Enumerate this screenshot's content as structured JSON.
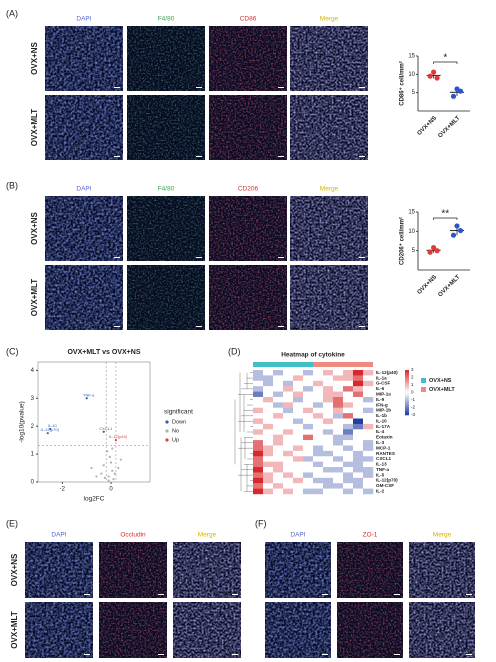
{
  "panel_a": {
    "label": "(A)",
    "columns": [
      "DAPI",
      "F4/80",
      "CD86",
      "Merge"
    ],
    "rows": [
      "OVX+NS",
      "OVX+MLT"
    ]
  },
  "panel_b": {
    "label": "(B)",
    "columns": [
      "DAPI",
      "F4/80",
      "CD206",
      "Merge"
    ],
    "rows": [
      "OVX+NS",
      "OVX+MLT"
    ]
  },
  "panel_c": {
    "label": "(C)"
  },
  "panel_d": {
    "label": "(D)"
  },
  "panel_e": {
    "label": "(E)",
    "columns": [
      "DAPI",
      "Occludin",
      "Merge"
    ],
    "rows": [
      "OVX+NS",
      "OVX+MLT"
    ]
  },
  "panel_f": {
    "label": "(F)",
    "columns": [
      "DAPI",
      "ZO-1",
      "Merge"
    ]
  },
  "chart_data": [
    {
      "type": "dot",
      "y_label": "CD86⁺ cell/mm²",
      "categories": [
        "OVX+NS",
        "OVX+MLT"
      ],
      "colors": [
        "#e03a3a",
        "#2c56c8"
      ],
      "values": [
        [
          9.5,
          10.6,
          9.0
        ],
        [
          4.0,
          6.0,
          5.4
        ]
      ],
      "mean": [
        9.7,
        5.1
      ],
      "sd": [
        0.8,
        1.0
      ],
      "ylim": [
        0,
        15
      ],
      "yticks": [
        5,
        10,
        15
      ],
      "annotation": "*"
    },
    {
      "type": "dot",
      "y_label": "CD206⁺ cell/mm²",
      "categories": [
        "OVX+NS",
        "OVX+MLT"
      ],
      "colors": [
        "#e03a3a",
        "#2c56c8"
      ],
      "values": [
        [
          4.6,
          5.8,
          5.0
        ],
        [
          9.0,
          11.4,
          10.2
        ]
      ],
      "mean": [
        5.1,
        10.2
      ],
      "sd": [
        0.6,
        1.2
      ],
      "ylim": [
        0,
        15
      ],
      "yticks": [
        5,
        10,
        15
      ],
      "annotation": "**"
    },
    {
      "type": "volcano",
      "title": "OVX+MLT vs OVX+NS",
      "x_label": "log2FC",
      "y_label": "-log10(pvalue)",
      "xlim": [
        -3,
        1.6
      ],
      "xticks": [
        -2,
        0
      ],
      "ylim": [
        0,
        4.3
      ],
      "yticks": [
        0,
        1,
        2,
        3,
        4
      ],
      "threshold_x": [
        -0.2,
        0.2
      ],
      "threshold_y": 1.3,
      "legend_title": "significant",
      "series": [
        {
          "name": "Down",
          "color": "#3a5cb0",
          "x": [
            -1.0,
            -2.5,
            -2.6,
            -0.3
          ],
          "values": [
            3.0,
            1.9,
            1.75,
            1.8
          ],
          "labels": [
            "TNF-a",
            "IL-10",
            "IL-12(p70)",
            "CXCL1"
          ]
        },
        {
          "name": "No",
          "color": "#b0b0b0",
          "x": [
            -0.1,
            0.05,
            -0.3,
            -0.05,
            0.1,
            -0.4,
            0.3,
            -0.15,
            0.0,
            -0.6,
            0.15,
            -0.25,
            0.4,
            -0.8,
            0.05,
            -0.1
          ],
          "values": [
            0.2,
            0.4,
            0.6,
            0.9,
            0.1,
            0.3,
            0.5,
            1.1,
            0.7,
            0.2,
            0.3,
            0.15,
            0.8,
            0.5,
            1.2,
            0.05
          ]
        },
        {
          "name": "Up",
          "color": "#e04040",
          "x": [
            0.2
          ],
          "values": [
            1.5
          ],
          "labels": [
            "IL-12(p40)"
          ]
        }
      ]
    },
    {
      "type": "heatmap",
      "title": "Heatmap of cytokine",
      "rows": [
        "IL-12(p40)",
        "IL-1a",
        "G-CSF",
        "IL-6",
        "MIP-1a",
        "IL-9",
        "IFN-g",
        "MIP-1b",
        "IL-1b",
        "IL-10",
        "IL-17A",
        "IL-4",
        "Eotaxin",
        "IL-3",
        "MCP-1",
        "RANTES",
        "CXCL1",
        "IL-13",
        "TNF-a",
        "IL-5",
        "IL-12(p70)",
        "GM-CSF",
        "IL-2"
      ],
      "groups": [
        {
          "name": "OVX+NS",
          "color": "#40bfc6",
          "count": 6
        },
        {
          "name": "OVX+MLT",
          "color": "#ef8a80",
          "count": 6
        }
      ],
      "zlim": [
        -3,
        3
      ],
      "zticks": [
        3,
        2,
        1,
        0,
        -1,
        -2,
        -3
      ],
      "values": [
        [
          -1,
          0,
          -1,
          0,
          0,
          -1,
          0,
          1,
          0,
          1,
          3,
          1
        ],
        [
          -1,
          -1,
          0,
          0,
          1,
          0,
          0,
          0,
          1,
          1,
          2,
          0
        ],
        [
          0,
          -1,
          0,
          -1,
          0,
          0,
          1,
          0,
          0,
          0,
          3,
          1
        ],
        [
          -1,
          0,
          0,
          1,
          0,
          -1,
          0,
          1,
          0,
          2,
          1,
          0
        ],
        [
          -2,
          0,
          -1,
          0,
          1,
          0,
          0,
          1,
          1,
          0,
          2,
          0
        ],
        [
          0,
          1,
          0,
          0,
          -1,
          0,
          0,
          1,
          2,
          0,
          0,
          -1
        ],
        [
          0,
          0,
          -1,
          1,
          0,
          0,
          -1,
          0,
          2,
          1,
          0,
          0
        ],
        [
          1,
          0,
          0,
          -1,
          0,
          1,
          0,
          0,
          1,
          0,
          0,
          -1
        ],
        [
          0,
          0,
          1,
          0,
          0,
          0,
          1,
          0,
          -1,
          2,
          0,
          0
        ],
        [
          1,
          0,
          0,
          0,
          -1,
          0,
          0,
          1,
          0,
          0,
          -3,
          0
        ],
        [
          0,
          1,
          0,
          0,
          0,
          -1,
          0,
          0,
          0,
          -1,
          -2,
          1
        ],
        [
          1,
          0,
          0,
          1,
          0,
          0,
          0,
          -1,
          0,
          -2,
          0,
          0
        ],
        [
          0,
          0,
          1,
          0,
          0,
          2,
          0,
          0,
          -1,
          -1,
          0,
          0
        ],
        [
          2,
          0,
          1,
          0,
          0,
          0,
          0,
          0,
          -1,
          0,
          0,
          -1
        ],
        [
          2,
          1,
          0,
          0,
          1,
          0,
          -1,
          0,
          0,
          -1,
          0,
          -1
        ],
        [
          3,
          1,
          0,
          1,
          0,
          0,
          -1,
          -1,
          0,
          0,
          -1,
          0
        ],
        [
          2,
          0,
          0,
          0,
          1,
          -1,
          0,
          0,
          -1,
          0,
          -1,
          -1
        ],
        [
          2,
          1,
          1,
          0,
          0,
          0,
          -1,
          0,
          0,
          -1,
          -1,
          0
        ],
        [
          3,
          0,
          1,
          0,
          0,
          0,
          0,
          -1,
          -1,
          0,
          -1,
          -1
        ],
        [
          2,
          1,
          0,
          1,
          0,
          -1,
          0,
          0,
          0,
          -1,
          0,
          -1
        ],
        [
          3,
          1,
          0,
          0,
          1,
          0,
          -1,
          -1,
          0,
          -1,
          -1,
          0
        ],
        [
          2,
          0,
          1,
          0,
          0,
          0,
          0,
          -1,
          -1,
          0,
          -1,
          0
        ],
        [
          3,
          1,
          0,
          1,
          0,
          -1,
          -1,
          0,
          0,
          -1,
          0,
          -1
        ]
      ]
    }
  ]
}
